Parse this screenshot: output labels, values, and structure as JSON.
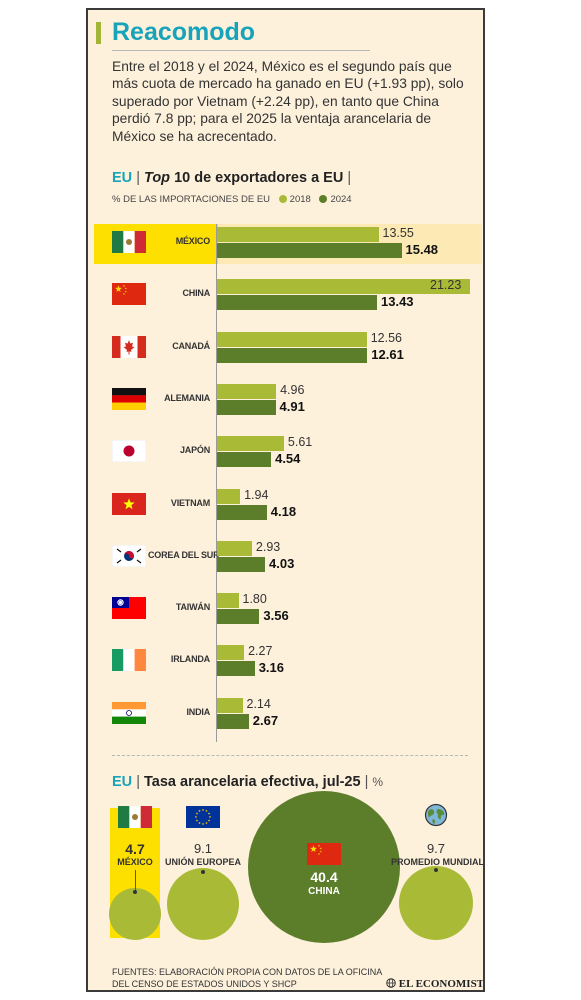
{
  "header": {
    "title": "Reacomodo",
    "intro": "Entre el 2018 y el 2024, México es el segundo país que más cuota de mercado ha ganado en EU (+1.93 pp), solo superado por Vietnam (+2.24 pp), en tanto que China perdió 7.8 pp; para el 2025 la ventaja arancelaria de México se ha acrecentado."
  },
  "colors": {
    "accent": "#17a3b9",
    "bar2018": "#a9bb36",
    "bar2024": "#5c7e2b",
    "highlight": "#fde000",
    "background": "#fdf1dc"
  },
  "section1": {
    "eu": "EU",
    "sep1": "|",
    "title_italic": "Top",
    "title_rest": " 10 de exportadores a EU",
    "sep2": "|",
    "legend_label": "% DE LAS IMPORTACIONES DE EU",
    "legend_2018": "2018",
    "legend_2024": "2024"
  },
  "section2": {
    "eu": "EU",
    "sep1": "|",
    "title": "Tasa arancelaria efectiva, jul-25",
    "sep2": "|",
    "unit": "%"
  },
  "chart_data": [
    {
      "type": "bar",
      "orientation": "horizontal",
      "categories": [
        "MÉXICO",
        "CHINA",
        "CANADÁ",
        "ALEMANIA",
        "JAPÓN",
        "VIETNAM",
        "COREA DEL SUR",
        "TAIWÁN",
        "IRLANDA",
        "INDIA"
      ],
      "flags": [
        "mexico-flag-icon",
        "china-flag-icon",
        "canada-flag-icon",
        "germany-flag-icon",
        "japan-flag-icon",
        "vietnam-flag-icon",
        "south-korea-flag-icon",
        "taiwan-flag-icon",
        "ireland-flag-icon",
        "india-flag-icon"
      ],
      "series": [
        {
          "name": "2018",
          "values": [
            13.55,
            21.23,
            12.56,
            4.96,
            5.61,
            1.94,
            2.93,
            1.8,
            2.27,
            2.14
          ],
          "labels": [
            "13.55",
            "21.23",
            "12.56",
            "4.96",
            "5.61",
            "1.94",
            "2.93",
            "1.80",
            "2.27",
            "2.14"
          ]
        },
        {
          "name": "2024",
          "values": [
            15.48,
            13.43,
            12.61,
            4.91,
            4.54,
            4.18,
            4.03,
            3.56,
            3.16,
            2.67
          ],
          "labels": [
            "15.48",
            "13.43",
            "12.61",
            "4.91",
            "4.54",
            "4.18",
            "4.03",
            "3.56",
            "3.16",
            "2.67"
          ]
        }
      ],
      "highlight": "MÉXICO",
      "xlim": [
        0,
        21.23
      ]
    },
    {
      "type": "bubble",
      "categories": [
        "MÉXICO",
        "UNIÓN EUROPEA",
        "CHINA",
        "PROMEDIO MUNDIAL"
      ],
      "icons": [
        "mexico-flag-icon",
        "eu-flag-icon",
        "china-flag-icon",
        "globe-icon"
      ],
      "values": [
        4.7,
        9.1,
        40.4,
        9.7
      ],
      "labels": [
        "4.7",
        "9.1",
        "40.4",
        "9.7"
      ],
      "highlight": "MÉXICO"
    }
  ],
  "footer": {
    "source_line1": "FUENTES: ELABORACIÓN PROPIA CON DATOS DE LA OFICINA",
    "source_line2": "DEL CENSO DE ESTADOS UNIDOS Y SHCP",
    "brand": "EL ECONOMISTA"
  }
}
